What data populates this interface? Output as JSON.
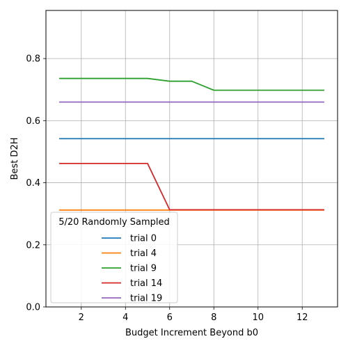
{
  "chart_data": {
    "type": "line",
    "xlabel": "Budget Increment Beyond b0",
    "ylabel": "Best D2H",
    "xlim": [
      0.4,
      13.6
    ],
    "ylim": [
      0.0,
      0.955
    ],
    "xticks": [
      2,
      4,
      6,
      8,
      10,
      12
    ],
    "yticks": [
      0.0,
      0.2,
      0.4,
      0.6,
      0.8
    ],
    "ytick_labels": [
      "0.0",
      "0.2",
      "0.4",
      "0.6",
      "0.8"
    ],
    "grid": true,
    "legend": {
      "title": "5/20 Randomly Sampled",
      "placement": "lower-left"
    },
    "x": [
      1,
      2,
      3,
      4,
      5,
      6,
      7,
      8,
      9,
      10,
      11,
      12,
      13
    ],
    "series": [
      {
        "name": "trial 0",
        "color": "#1f77b4",
        "values": [
          0.542,
          0.542,
          0.542,
          0.542,
          0.542,
          0.542,
          0.542,
          0.542,
          0.542,
          0.542,
          0.542,
          0.542,
          0.542
        ]
      },
      {
        "name": "trial 4",
        "color": "#ff7f0e",
        "values": [
          0.312,
          0.312,
          0.312,
          0.312,
          0.312,
          0.312,
          0.312,
          0.312,
          0.312,
          0.312,
          0.312,
          0.312,
          0.312
        ]
      },
      {
        "name": "trial 9",
        "color": "#2ca02c",
        "values": [
          0.736,
          0.736,
          0.736,
          0.736,
          0.736,
          0.727,
          0.727,
          0.698,
          0.698,
          0.698,
          0.698,
          0.698,
          0.698
        ]
      },
      {
        "name": "trial 14",
        "color": "#d62728",
        "values": [
          0.462,
          0.462,
          0.462,
          0.462,
          0.462,
          0.313,
          0.313,
          0.313,
          0.313,
          0.313,
          0.313,
          0.313,
          0.313
        ]
      },
      {
        "name": "trial 19",
        "color": "#9467bd",
        "values": [
          0.66,
          0.66,
          0.66,
          0.66,
          0.66,
          0.66,
          0.66,
          0.66,
          0.66,
          0.66,
          0.66,
          0.66,
          0.66
        ]
      }
    ]
  }
}
